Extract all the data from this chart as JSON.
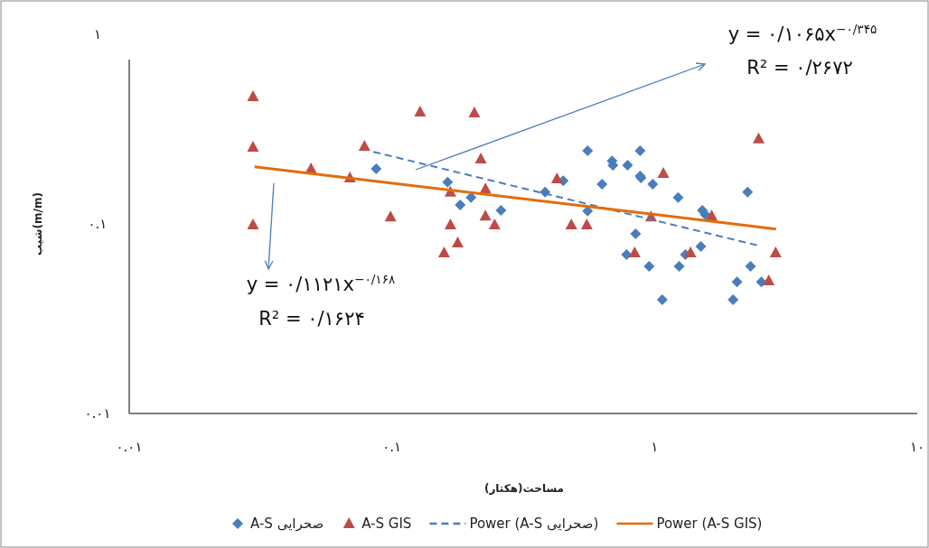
{
  "chart_data": {
    "type": "scatter",
    "xlabel": "مساحت(هکتار)",
    "ylabel": "شیب(m/m)",
    "log": "xy",
    "xlim": [
      0.01,
      10
    ],
    "ylim": [
      0.01,
      1
    ],
    "xticks": [
      {
        "value": 0.01,
        "label": "۰.۰۱"
      },
      {
        "value": 0.1,
        "label": "۰.۱"
      },
      {
        "value": 1,
        "label": "۱"
      },
      {
        "value": 10,
        "label": "۱۰"
      }
    ],
    "yticks": [
      {
        "value": 0.01,
        "label": "۰.۰۱"
      },
      {
        "value": 0.1,
        "label": "۰.۱"
      },
      {
        "value": 1,
        "label": "۱"
      }
    ],
    "grid": false,
    "legend": "bottom",
    "annotations": [
      "y = ۰/۱۰۶۵x$^{−۰/۳۴۵}$",
      "R² = ۰/۲۶۷۲",
      "y = ۰/۱۱۲۱x$^{−۰/۱۶۸}$",
      "R² = ۰/۱۶۲۴"
    ],
    "series": [
      {
        "name": "A-S صحرایی",
        "marker": "diamond",
        "color": "#4a7ebb",
        "x": [
          0.0871,
          0.163,
          0.182,
          0.2,
          0.26,
          0.383,
          0.449,
          0.556,
          0.556,
          0.631,
          0.689,
          0.694,
          0.789,
          0.881,
          0.881,
          0.888,
          0.984,
          1.23,
          1.52,
          1.56,
          0.847,
          0.782,
          0.953,
          1.07,
          1.24,
          1.31,
          1.5,
          2.26,
          2.32,
          2.06,
          1.99,
          2.55
        ],
        "values": [
          0.195,
          0.166,
          0.126,
          0.138,
          0.118,
          0.147,
          0.169,
          0.243,
          0.117,
          0.162,
          0.215,
          0.204,
          0.204,
          0.243,
          0.179,
          0.175,
          0.162,
          0.138,
          0.118,
          0.112,
          0.0886,
          0.0689,
          0.0597,
          0.0398,
          0.0597,
          0.0689,
          0.076,
          0.147,
          0.0597,
          0.0495,
          0.0398,
          0.0495
        ]
      },
      {
        "name": "A-S GIS",
        "marker": "triangle",
        "color": "#be4b48",
        "x": [
          0.0296,
          0.0296,
          0.0296,
          0.0492,
          0.0692,
          0.0786,
          0.0988,
          0.128,
          0.206,
          0.218,
          0.167,
          0.227,
          0.167,
          0.227,
          0.246,
          0.178,
          0.158,
          0.425,
          0.482,
          0.552,
          1.08,
          0.84,
          0.969,
          1.37,
          1.65,
          2.49,
          2.89,
          2.72
        ],
        "values": [
          0.469,
          0.254,
          0.099,
          0.195,
          0.175,
          0.257,
          0.109,
          0.39,
          0.385,
          0.22,
          0.147,
          0.153,
          0.099,
          0.11,
          0.099,
          0.0794,
          0.0704,
          0.173,
          0.099,
          0.099,
          0.185,
          0.0704,
          0.109,
          0.0704,
          0.11,
          0.281,
          0.0704,
          0.0501
        ]
      },
      {
        "name": "Power (A-S صحرایی)",
        "type": "line",
        "line_style": "dashed",
        "color": "#4a7ebb",
        "x": [
          0.085,
          2.47
        ],
        "values": [
          0.24,
          0.077
        ]
      },
      {
        "name": "Power (A-S GIS)",
        "type": "line",
        "line_style": "solid",
        "color": "#e46c0a",
        "x": [
          0.03,
          2.9
        ],
        "values": [
          0.2,
          0.094
        ]
      }
    ]
  }
}
